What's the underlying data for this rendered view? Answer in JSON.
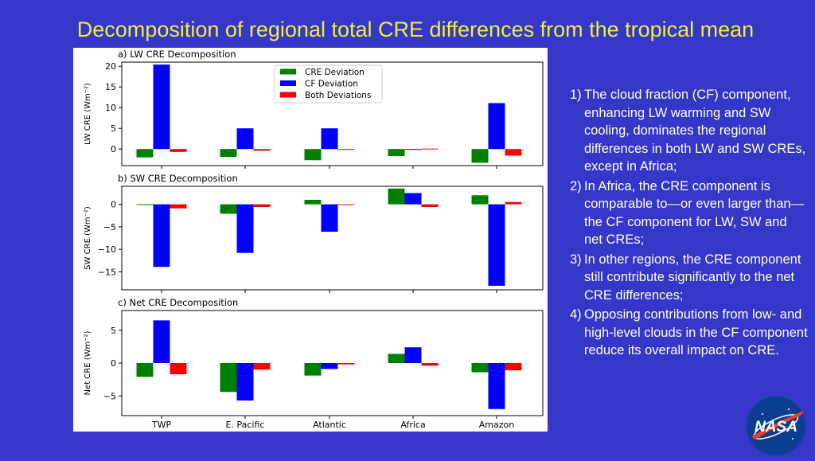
{
  "slide": {
    "title": "Decomposition of regional total CRE differences from the tropical mean"
  },
  "notes": [
    {
      "num": "1)",
      "text": "The cloud fraction (CF) component, enhancing LW warming and SW cooling, dominates the regional differences in both LW and SW CREs, except in Africa;"
    },
    {
      "num": "2)",
      "text": "In Africa, the CRE component is comparable to—or even larger than—the CF component for LW, SW and net CREs;"
    },
    {
      "num": "3)",
      "text": "In other regions, the CRE component still contribute significantly to the net CRE differences;"
    },
    {
      "num": "4)",
      "text": "Opposing contributions from low- and high-level clouds in the CF component reduce its overall impact on CRE."
    }
  ],
  "logo": {
    "text": "NASA"
  },
  "colors": {
    "background": "#3437c8",
    "title": "#f2ee3a",
    "cre_deviation": "#008000",
    "cf_deviation": "#0000ff",
    "both_deviations": "#ff0000"
  },
  "chart_data": [
    {
      "type": "bar",
      "title": "a) LW CRE Decomposition",
      "ylabel": "LW CRE (Wm⁻²)",
      "categories": [
        "TWP",
        "E. Pacific",
        "Atlantic",
        "Africa",
        "Amazon"
      ],
      "ylim": [
        -4,
        21
      ],
      "yticks": [
        0,
        5,
        10,
        15,
        20
      ],
      "legend": "top-center",
      "series": [
        {
          "name": "CRE Deviation",
          "color": "#008000",
          "values": [
            -2.0,
            -1.9,
            -2.7,
            -1.7,
            -3.3
          ]
        },
        {
          "name": "CF Deviation",
          "color": "#0000ff",
          "values": [
            20.4,
            5.0,
            5.0,
            -0.1,
            11.1
          ]
        },
        {
          "name": "Both Deviations",
          "color": "#ff0000",
          "values": [
            -0.7,
            -0.4,
            -0.2,
            0.1,
            -1.6
          ]
        }
      ]
    },
    {
      "type": "bar",
      "title": "b) SW CRE Decomposition",
      "ylabel": "SW CRE (Wm⁻²)",
      "categories": [
        "TWP",
        "E. Pacific",
        "Atlantic",
        "Africa",
        "Amazon"
      ],
      "ylim": [
        -19,
        4
      ],
      "yticks": [
        0,
        -5,
        -10,
        -15
      ],
      "series": [
        {
          "name": "CRE Deviation",
          "color": "#008000",
          "values": [
            0.0,
            -2.1,
            1.0,
            3.5,
            2.0
          ]
        },
        {
          "name": "CF Deviation",
          "color": "#0000ff",
          "values": [
            -13.9,
            -10.8,
            -6.1,
            2.5,
            -18.1
          ]
        },
        {
          "name": "Both Deviations",
          "color": "#ff0000",
          "values": [
            -0.9,
            -0.6,
            0.0,
            -0.6,
            0.5
          ]
        }
      ]
    },
    {
      "type": "bar",
      "title": "c) Net CRE Decomposition",
      "ylabel": "Net CRE (Wm⁻²)",
      "categories": [
        "TWP",
        "E. Pacific",
        "Atlantic",
        "Africa",
        "Amazon"
      ],
      "ylim": [
        -8,
        8
      ],
      "yticks": [
        5,
        0,
        -5
      ],
      "series": [
        {
          "name": "CRE Deviation",
          "color": "#008000",
          "values": [
            -2.1,
            -4.4,
            -1.9,
            1.4,
            -1.4
          ]
        },
        {
          "name": "CF Deviation",
          "color": "#0000ff",
          "values": [
            6.5,
            -5.7,
            -0.9,
            2.4,
            -7.0
          ]
        },
        {
          "name": "Both Deviations",
          "color": "#ff0000",
          "values": [
            -1.7,
            -1.0,
            -0.2,
            -0.4,
            -1.1
          ]
        }
      ]
    }
  ]
}
